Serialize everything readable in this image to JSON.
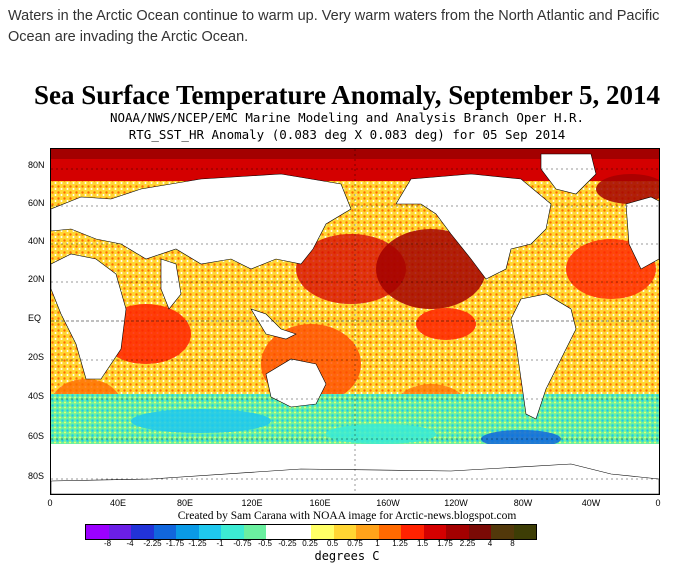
{
  "intro_text": "Waters in the Arctic Ocean continue to warm up. Very warm waters from the North Atlantic and Pacific Ocean are invading the Arctic Ocean.",
  "map": {
    "title": "Sea Surface Temperature Anomaly, September 5, 2014",
    "subtitle_1": "NOAA/NWS/NCEP/EMC Marine Modeling and Analysis Branch Oper H.R.",
    "subtitle_2": "RTG_SST_HR Anomaly (0.083 deg X 0.083 deg) for 05 Sep 2014",
    "lat_labels": [
      "80N",
      "60N",
      "40N",
      "20N",
      "EQ",
      "20S",
      "40S",
      "60S",
      "80S"
    ],
    "lon_labels": [
      "0",
      "40E",
      "80E",
      "120E",
      "160E",
      "160W",
      "120W",
      "80W",
      "40W",
      "0"
    ],
    "credit": "Created by Sam Carana with NOAA image for Arctic-news.blogspot.com",
    "colorbar_labels": [
      "-8",
      "-4",
      "-2.25",
      "-1.75",
      "-1.25",
      "-1",
      "-0.75",
      "-0.5",
      "-0.25",
      "0.25",
      "0.5",
      "0.75",
      "1",
      "1.25",
      "1.5",
      "1.75",
      "2.25",
      "4",
      "8"
    ],
    "colorbar_colors": [
      "#9b00ff",
      "#6b1fe6",
      "#2233d8",
      "#1166dd",
      "#0a9ae6",
      "#1fc8ee",
      "#3cebd3",
      "#6bf0a0",
      "#ffffff",
      "#ffffff",
      "#ffff66",
      "#ffd633",
      "#ffa31a",
      "#ff6a00",
      "#ff2200",
      "#d40000",
      "#a30000",
      "#7a0a05",
      "#52380a",
      "#3d3d05"
    ],
    "units": "degrees C"
  }
}
